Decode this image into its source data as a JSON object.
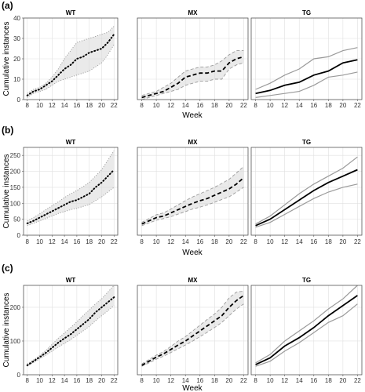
{
  "chart_data": {
    "type": "line",
    "xlabel": "Week",
    "ylabel": "Cumulative instances",
    "x_ticks": [
      8,
      10,
      12,
      14,
      16,
      18,
      20,
      22
    ],
    "facets": [
      "WT",
      "MX",
      "TG"
    ],
    "facet_styles": {
      "WT": {
        "line": "dotted",
        "color": "#000000",
        "band_stroke": "dotted"
      },
      "MX": {
        "line": "dashed",
        "color": "#000000",
        "band_stroke": "dashed"
      },
      "TG": {
        "line": "solid",
        "color": "#000000",
        "band_stroke": "solid"
      }
    },
    "rows": [
      {
        "label": "(a)",
        "ylim": [
          0,
          40
        ],
        "y_ticks": [
          0,
          10,
          20,
          30,
          40
        ],
        "series": [
          {
            "facet": "WT",
            "x": [
              8,
              9,
              10,
              11,
              12,
              13,
              14,
              15,
              16,
              17,
              18,
              19,
              20,
              21,
              22
            ],
            "mean": [
              2,
              4,
              5,
              7,
              9,
              12,
              15,
              17,
              20,
              21,
              23,
              24,
              25,
              28,
              32
            ],
            "lower": [
              1,
              3,
              4,
              5,
              7,
              9,
              10,
              11,
              12,
              13,
              14,
              16,
              18,
              22,
              27
            ],
            "upper": [
              3,
              5,
              6,
              8,
              11,
              15,
              20,
              24,
              28,
              29,
              30,
              31,
              32,
              33,
              36
            ]
          },
          {
            "facet": "MX",
            "x": [
              8,
              9,
              10,
              11,
              12,
              13,
              14,
              15,
              16,
              17,
              18,
              19,
              20,
              21,
              22
            ],
            "mean": [
              1,
              2,
              3,
              4,
              6,
              8,
              11,
              12,
              13,
              13,
              14,
              14,
              18,
              20,
              21
            ],
            "lower": [
              0,
              1,
              2,
              3,
              4,
              5,
              7,
              8,
              9,
              9,
              10,
              10,
              15,
              17,
              18
            ],
            "upper": [
              2,
              3,
              4,
              6,
              8,
              11,
              14,
              15,
              16,
              16,
              17,
              19,
              22,
              24,
              24
            ]
          },
          {
            "facet": "TG",
            "x": [
              8,
              10,
              12,
              14,
              16,
              18,
              20,
              22
            ],
            "mean": [
              3,
              4.5,
              7,
              8.5,
              12,
              14,
              18,
              19.5
            ],
            "lower": [
              1,
              2,
              3,
              4,
              7,
              11,
              12,
              13.5
            ],
            "upper": [
              5,
              8,
              12,
              15,
              20,
              21,
              24,
              25.5
            ]
          }
        ]
      },
      {
        "label": "(b)",
        "ylim": [
          0,
          275
        ],
        "y_ticks": [
          0,
          50,
          100,
          150,
          200,
          250
        ],
        "series": [
          {
            "facet": "WT",
            "x": [
              8,
              9,
              10,
              11,
              12,
              13,
              14,
              15,
              16,
              17,
              18,
              19,
              20,
              21,
              22
            ],
            "mean": [
              37,
              45,
              55,
              65,
              75,
              85,
              95,
              105,
              110,
              120,
              130,
              150,
              165,
              185,
              205
            ],
            "lower": [
              30,
              37,
              45,
              52,
              60,
              68,
              74,
              80,
              84,
              90,
              96,
              108,
              120,
              135,
              150
            ],
            "upper": [
              45,
              55,
              67,
              80,
              92,
              104,
              118,
              130,
              140,
              152,
              165,
              185,
              205,
              235,
              265
            ]
          },
          {
            "facet": "MX",
            "x": [
              8,
              9,
              10,
              11,
              12,
              13,
              14,
              15,
              16,
              17,
              18,
              19,
              20,
              21,
              22
            ],
            "mean": [
              35,
              45,
              55,
              60,
              70,
              80,
              90,
              100,
              108,
              115,
              125,
              135,
              145,
              160,
              180
            ],
            "lower": [
              30,
              38,
              47,
              52,
              58,
              66,
              74,
              82,
              88,
              95,
              103,
              112,
              120,
              135,
              150
            ],
            "upper": [
              40,
              52,
              64,
              70,
              82,
              95,
              108,
              120,
              130,
              140,
              150,
              162,
              175,
              195,
              215
            ]
          },
          {
            "facet": "TG",
            "x": [
              8,
              10,
              12,
              14,
              16,
              18,
              20,
              22
            ],
            "mean": [
              30,
              50,
              80,
              110,
              140,
              165,
              185,
              205
            ],
            "lower": [
              25,
              40,
              65,
              90,
              115,
              135,
              150,
              160
            ],
            "upper": [
              35,
              60,
              95,
              130,
              160,
              185,
              210,
              245
            ]
          }
        ]
      },
      {
        "label": "(c)",
        "ylim": [
          0,
          265
        ],
        "y_ticks": [
          0,
          100,
          200
        ],
        "series": [
          {
            "facet": "WT",
            "x": [
              8,
              9,
              10,
              11,
              12,
              13,
              14,
              15,
              16,
              17,
              18,
              19,
              20,
              21,
              22
            ],
            "mean": [
              28,
              40,
              52,
              65,
              80,
              95,
              108,
              120,
              135,
              150,
              165,
              185,
              200,
              215,
              230
            ],
            "lower": [
              25,
              36,
              47,
              58,
              70,
              82,
              93,
              104,
              117,
              130,
              143,
              160,
              175,
              190,
              205
            ],
            "upper": [
              32,
              44,
              57,
              72,
              90,
              108,
              124,
              140,
              157,
              175,
              192,
              210,
              225,
              245,
              265
            ]
          },
          {
            "facet": "MX",
            "x": [
              8,
              9,
              10,
              11,
              12,
              13,
              14,
              15,
              16,
              17,
              18,
              19,
              20,
              21,
              22
            ],
            "mean": [
              28,
              40,
              52,
              62,
              75,
              88,
              100,
              115,
              130,
              145,
              160,
              175,
              200,
              220,
              235
            ],
            "lower": [
              25,
              35,
              46,
              55,
              66,
              77,
              88,
              100,
              113,
              126,
              140,
              155,
              175,
              195,
              210
            ],
            "upper": [
              32,
              45,
              58,
              69,
              84,
              100,
              113,
              130,
              147,
              164,
              180,
              200,
              228,
              245,
              248
            ]
          },
          {
            "facet": "TG",
            "x": [
              8,
              10,
              12,
              14,
              16,
              18,
              20,
              22
            ],
            "mean": [
              30,
              50,
              85,
              110,
              140,
              175,
              205,
              235
            ],
            "lower": [
              25,
              40,
              70,
              95,
              125,
              155,
              175,
              210
            ],
            "upper": [
              35,
              60,
              100,
              130,
              160,
              195,
              225,
              265
            ]
          }
        ]
      }
    ]
  }
}
